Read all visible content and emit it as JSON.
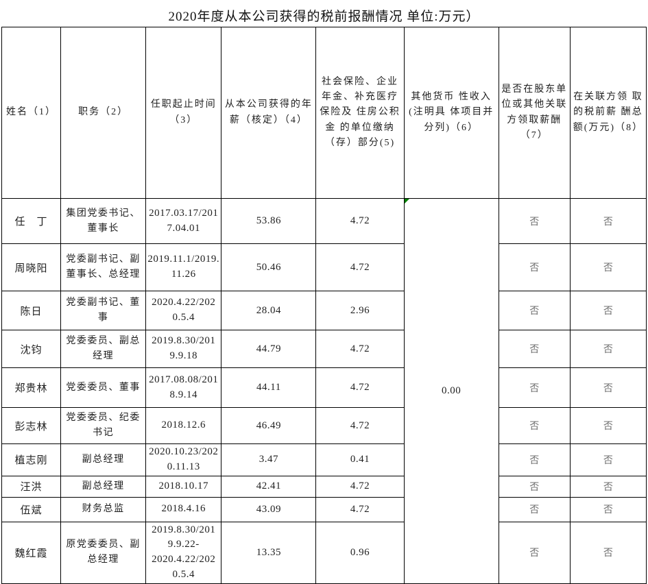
{
  "title": "2020年度从本公司获得的税前报酬情况 单位:万元）",
  "colors": {
    "border": "#000000",
    "text": "#1f1f1f",
    "muted_text": "#6f6f6f",
    "comment_marker_green": "#008000"
  },
  "table": {
    "headers": [
      "姓名（1）",
      "职务（2）",
      "任职起止时间（3）",
      "从本公司获得的年薪（核定）（4）",
      "社会保险、企业年金、补充医疗保险及 住房公积金 的单位缴纳（存）部分(5)",
      "其他货币 性收入(注明具 体项目并分列)（6）",
      "是否在股东单位或其他关联方领取薪酬（7）",
      "在关联方领 取的税前薪 酬总额(万元)（8）"
    ],
    "merged_other_income": "0.00",
    "rows": [
      {
        "name": "任　丁",
        "position": "集团党委书记、董事长",
        "term": "2017.03.17/2017.04.01",
        "salary": "53.86",
        "social": "4.72",
        "yn_shareholder": "否",
        "related_total": "否"
      },
      {
        "name": "周晓阳",
        "position": "党委副书记、副董事长、总经理",
        "term": "2019.11.1/2019.11.26",
        "salary": "50.46",
        "social": "4.72",
        "yn_shareholder": "否",
        "related_total": "否"
      },
      {
        "name": "陈日",
        "position": "党委副书记、董事",
        "term": "2020.4.22/2020.5.4",
        "salary": "28.04",
        "social": "2.96",
        "yn_shareholder": "否",
        "related_total": "否"
      },
      {
        "name": "沈钧",
        "position": "党委委员、副总经理",
        "term": "2019.8.30/2019.9.18",
        "salary": "44.79",
        "social": "4.72",
        "yn_shareholder": "否",
        "related_total": "否"
      },
      {
        "name": "郑贵林",
        "position": "党委委员、董事",
        "term": "2017.08.08/2018.9.14",
        "salary": "44.11",
        "social": "4.72",
        "yn_shareholder": "否",
        "related_total": "否"
      },
      {
        "name": "彭志林",
        "position": "党委委员、纪委书记",
        "term": "2018.12.6",
        "salary": "46.49",
        "social": "4.72",
        "yn_shareholder": "否",
        "related_total": "否"
      },
      {
        "name": "植志刚",
        "position": "副总经理",
        "term": "2020.10.23/2020.11.13",
        "salary": "3.47",
        "social": "0.41",
        "yn_shareholder": "否",
        "related_total": "否"
      },
      {
        "name": "汪洪",
        "position": "副总经理",
        "term": "2018.10.17",
        "salary": "42.41",
        "social": "4.72",
        "yn_shareholder": "否",
        "related_total": "否"
      },
      {
        "name": "伍斌",
        "position": "财务总监",
        "term": "2018.4.16",
        "salary": "43.09",
        "social": "4.72",
        "yn_shareholder": "否",
        "related_total": "否"
      },
      {
        "name": "魏红霞",
        "position": "原党委委员、副总经理",
        "term": "2019.8.30/2019.9.22-\n2020.4.22/2020.5.4",
        "salary": "13.35",
        "social": "0.96",
        "yn_shareholder": "否",
        "related_total": "否"
      }
    ]
  }
}
